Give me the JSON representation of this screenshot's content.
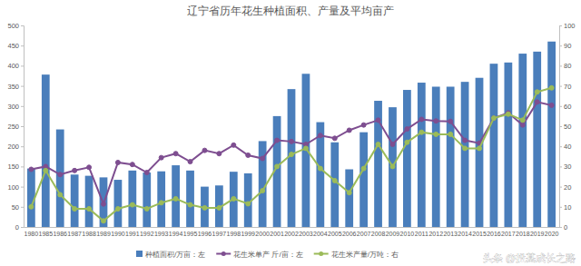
{
  "chart_data": {
    "type": "bar",
    "title": "辽宁省历年花生种植面积、产量及平均亩产",
    "categories": [
      "1980",
      "1985",
      "1986",
      "1987",
      "1988",
      "1989",
      "1990",
      "1991",
      "1992",
      "1993",
      "1994",
      "1995",
      "1996",
      "1997",
      "1998",
      "1999",
      "2000",
      "2001",
      "2002",
      "2003",
      "2004",
      "2005",
      "2006",
      "2007",
      "2008",
      "2009",
      "2010",
      "2011",
      "2012",
      "2013",
      "2014",
      "2015",
      "2016",
      "2017",
      "2018",
      "2019",
      "2020"
    ],
    "series": [
      {
        "name": "种植面积/万亩：左",
        "type": "bar",
        "color": "#4a7ebb",
        "values": [
          145,
          378,
          242,
          130,
          127,
          123,
          117,
          140,
          135,
          138,
          153,
          140,
          100,
          103,
          137,
          133,
          213,
          275,
          342,
          380,
          260,
          210,
          143,
          235,
          313,
          297,
          340,
          358,
          348,
          348,
          360,
          370,
          405,
          408,
          430,
          435,
          460
        ]
      },
      {
        "name": "花生米单产 斤/亩：左",
        "type": "line",
        "color": "#7e4e90",
        "marker": "circle",
        "values": [
          143,
          150,
          130,
          140,
          148,
          57,
          160,
          155,
          135,
          172,
          182,
          162,
          190,
          182,
          203,
          178,
          170,
          215,
          212,
          205,
          227,
          220,
          240,
          253,
          265,
          205,
          243,
          267,
          263,
          262,
          215,
          208,
          270,
          283,
          253,
          310,
          302
        ]
      },
      {
        "name": "花生米产量/万吨：右",
        "type": "line",
        "color": "#9bbb59",
        "marker": "circle",
        "axis": "y2",
        "values": [
          10,
          28,
          16,
          9,
          9,
          3,
          9,
          11,
          9,
          12,
          14,
          11,
          9.5,
          9.5,
          14,
          11.5,
          18,
          30,
          36,
          39,
          29,
          23,
          17,
          29,
          41,
          30,
          42,
          47,
          46,
          46,
          39,
          39,
          54,
          56,
          53,
          67,
          69
        ]
      }
    ],
    "ylim": [
      0,
      500
    ],
    "yticks": [
      0,
      50,
      100,
      150,
      200,
      250,
      300,
      350,
      400,
      450,
      500
    ],
    "y2lim": [
      0,
      100
    ],
    "y2ticks": [
      0,
      10,
      20,
      30,
      40,
      50,
      60,
      70,
      80,
      90,
      100
    ],
    "grid": false,
    "legend": "bottom",
    "annotations": [
      "头条 @投基成长之路"
    ]
  }
}
